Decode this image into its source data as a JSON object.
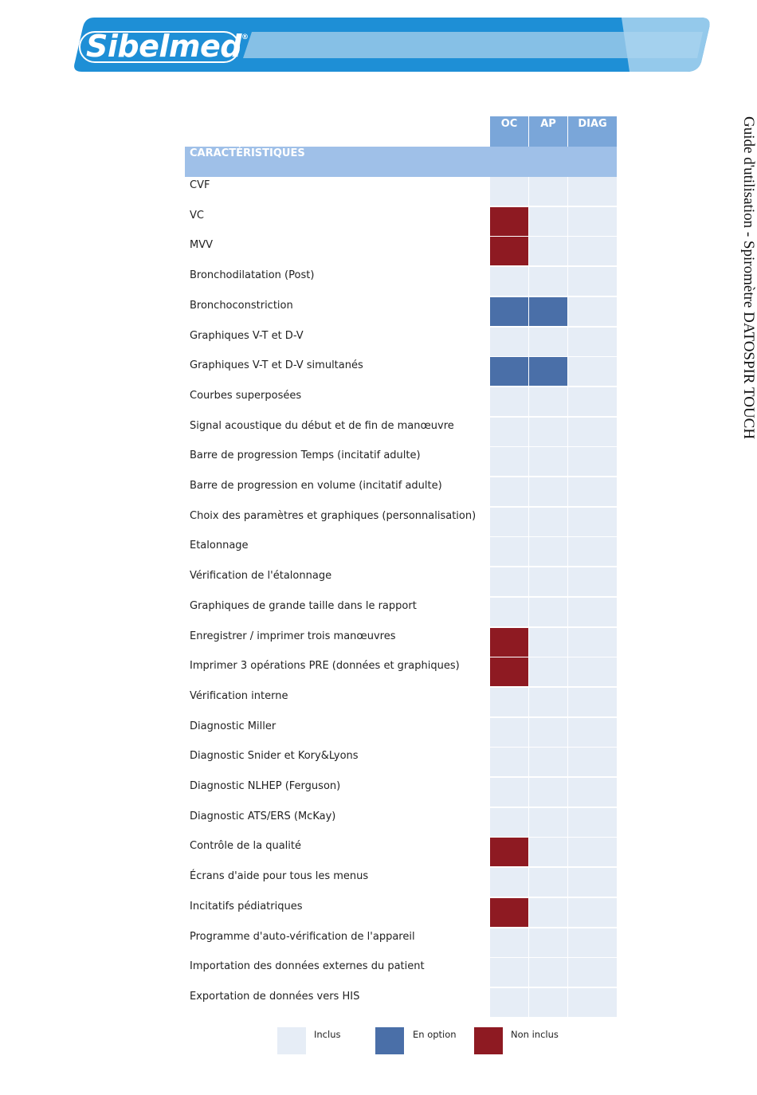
{
  "header": {
    "brand": "Sibelmed",
    "brand_mark": "®",
    "side_title": "Guide d'utilisation - Spiromètre DATOSPIR TOUCH"
  },
  "table": {
    "columns": [
      "OC",
      "AP",
      "DIAG"
    ],
    "section_label": "CARACTÉRISTIQUES",
    "rows": [
      {
        "label": "CVF",
        "status": [
          "inclus",
          "inclus",
          "inclus"
        ]
      },
      {
        "label": "VC",
        "status": [
          "non_inclus",
          "inclus",
          "inclus"
        ]
      },
      {
        "label": "MVV",
        "status": [
          "non_inclus",
          "inclus",
          "inclus"
        ]
      },
      {
        "label": "Bronchodilatation (Post)",
        "status": [
          "inclus",
          "inclus",
          "inclus"
        ]
      },
      {
        "label": "Bronchoconstriction",
        "status": [
          "en_option",
          "en_option",
          "inclus"
        ]
      },
      {
        "label": "Graphiques V-T et D-V",
        "status": [
          "inclus",
          "inclus",
          "inclus"
        ]
      },
      {
        "label": "Graphiques V-T et D-V simultanés",
        "status": [
          "en_option",
          "en_option",
          "inclus"
        ]
      },
      {
        "label": "Courbes superposées",
        "status": [
          "inclus",
          "inclus",
          "inclus"
        ]
      },
      {
        "label": "Signal acoustique du début et de fin de manœuvre",
        "status": [
          "inclus",
          "inclus",
          "inclus"
        ]
      },
      {
        "label": "Barre de progression Temps (incitatif adulte)",
        "status": [
          "inclus",
          "inclus",
          "inclus"
        ]
      },
      {
        "label": "Barre de progression en volume (incitatif adulte)",
        "status": [
          "inclus",
          "inclus",
          "inclus"
        ]
      },
      {
        "label": "Choix des paramètres et graphiques (personnalisation)",
        "status": [
          "inclus",
          "inclus",
          "inclus"
        ]
      },
      {
        "label": "Etalonnage",
        "status": [
          "inclus",
          "inclus",
          "inclus"
        ]
      },
      {
        "label": "Vérification de l'étalonnage",
        "status": [
          "inclus",
          "inclus",
          "inclus"
        ]
      },
      {
        "label": "Graphiques de grande taille dans le rapport",
        "status": [
          "inclus",
          "inclus",
          "inclus"
        ]
      },
      {
        "label": "Enregistrer / imprimer trois manœuvres",
        "status": [
          "non_inclus",
          "inclus",
          "inclus"
        ]
      },
      {
        "label": "Imprimer 3 opérations PRE (données et graphiques)",
        "status": [
          "non_inclus",
          "inclus",
          "inclus"
        ]
      },
      {
        "label": "Vérification interne",
        "status": [
          "inclus",
          "inclus",
          "inclus"
        ]
      },
      {
        "label": "Diagnostic Miller",
        "status": [
          "inclus",
          "inclus",
          "inclus"
        ]
      },
      {
        "label": "Diagnostic Snider et Kory&Lyons",
        "status": [
          "inclus",
          "inclus",
          "inclus"
        ]
      },
      {
        "label": "Diagnostic NLHEP (Ferguson)",
        "status": [
          "inclus",
          "inclus",
          "inclus"
        ]
      },
      {
        "label": "Diagnostic ATS/ERS (McKay)",
        "status": [
          "inclus",
          "inclus",
          "inclus"
        ]
      },
      {
        "label": "Contrôle de la qualité",
        "status": [
          "non_inclus",
          "inclus",
          "inclus"
        ]
      },
      {
        "label": "Écrans d'aide pour tous les menus",
        "status": [
          "inclus",
          "inclus",
          "inclus"
        ]
      },
      {
        "label": "Incitatifs pédiatriques",
        "status": [
          "non_inclus",
          "inclus",
          "inclus"
        ]
      },
      {
        "label": "Programme d'auto-vérification de l'appareil",
        "status": [
          "inclus",
          "inclus",
          "inclus"
        ]
      },
      {
        "label": "Importation des données externes du patient",
        "status": [
          "inclus",
          "inclus",
          "inclus"
        ]
      },
      {
        "label": "Exportation de données vers HIS",
        "status": [
          "inclus",
          "inclus",
          "inclus"
        ]
      }
    ]
  },
  "legend": [
    {
      "label": "Inclus",
      "color": "#e6edf6"
    },
    {
      "label": "En option",
      "color": "#4a6fa8"
    },
    {
      "label": "Non inclus",
      "color": "#8e1a22"
    }
  ],
  "colors": {
    "banner_dark": "#1e8fd6",
    "banner_light": "#86c0e6",
    "header_cell": "#7aa6d9",
    "section_row": "#9fc0e8"
  }
}
